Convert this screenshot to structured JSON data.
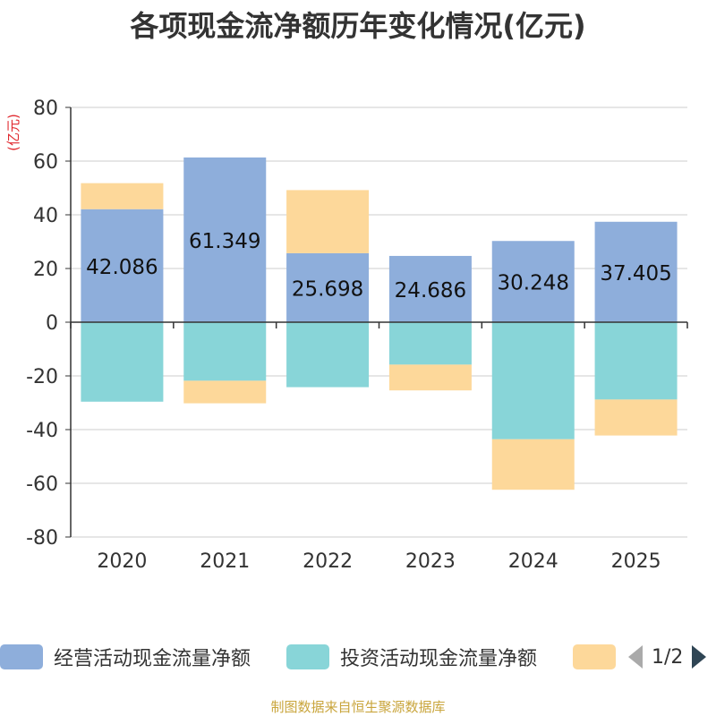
{
  "chart_data": {
    "type": "bar",
    "stacked": true,
    "title": "各项现金流净额历年变化情况(亿元)",
    "ylabel": "(亿元)",
    "ylim": [
      -80,
      80
    ],
    "yticks": [
      80,
      60,
      40,
      20,
      0,
      -20,
      -40,
      -60,
      -80
    ],
    "categories": [
      "2020",
      "2021",
      "2022",
      "2023",
      "2024",
      "2025"
    ],
    "series": [
      {
        "name": "经营活动现金流量净额",
        "color": "#8eaedb",
        "values": [
          42.086,
          61.349,
          25.698,
          24.686,
          30.248,
          37.405
        ],
        "labels": [
          "42.086",
          "61.349",
          "25.698",
          "24.686",
          "30.248",
          "37.405"
        ]
      },
      {
        "name": "投资活动现金流量净额",
        "color": "#88d5d8",
        "values": [
          -29.6,
          -21.8,
          -24.2,
          -15.8,
          -43.6,
          -28.8
        ]
      },
      {
        "name": "",
        "color": "#fdd89a",
        "values": [
          9.7,
          -8.4,
          23.5,
          -9.6,
          -18.8,
          -13.4
        ]
      }
    ]
  },
  "legend": {
    "items": [
      {
        "label": "经营活动现金流量净额",
        "color": "#8eaedb"
      },
      {
        "label": "投资活动现金流量净额",
        "color": "#88d5d8"
      },
      {
        "label": "",
        "color": "#fdd89a"
      }
    ],
    "pager": "1/2"
  },
  "source": "制图数据来自恒生聚源数据库"
}
